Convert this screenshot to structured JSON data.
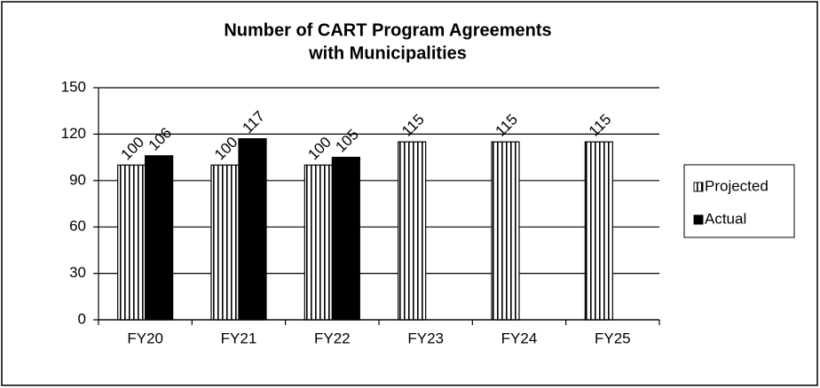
{
  "chart_data": {
    "type": "bar",
    "title": [
      "Number of CART Program Agreements",
      "with Municipalities"
    ],
    "categories": [
      "FY20",
      "FY21",
      "FY22",
      "FY23",
      "FY24",
      "FY25"
    ],
    "series": [
      {
        "name": "Projected",
        "color": "#ffffff",
        "hatch": "vertical",
        "values": [
          100,
          100,
          100,
          115,
          115,
          115
        ]
      },
      {
        "name": "Actual",
        "color": "#000000",
        "values": [
          106,
          117,
          105,
          null,
          null,
          null
        ]
      }
    ],
    "ylim": [
      0,
      150
    ],
    "yticks": [
      0,
      30,
      60,
      90,
      120,
      150
    ],
    "grid": true,
    "legend": "right"
  }
}
